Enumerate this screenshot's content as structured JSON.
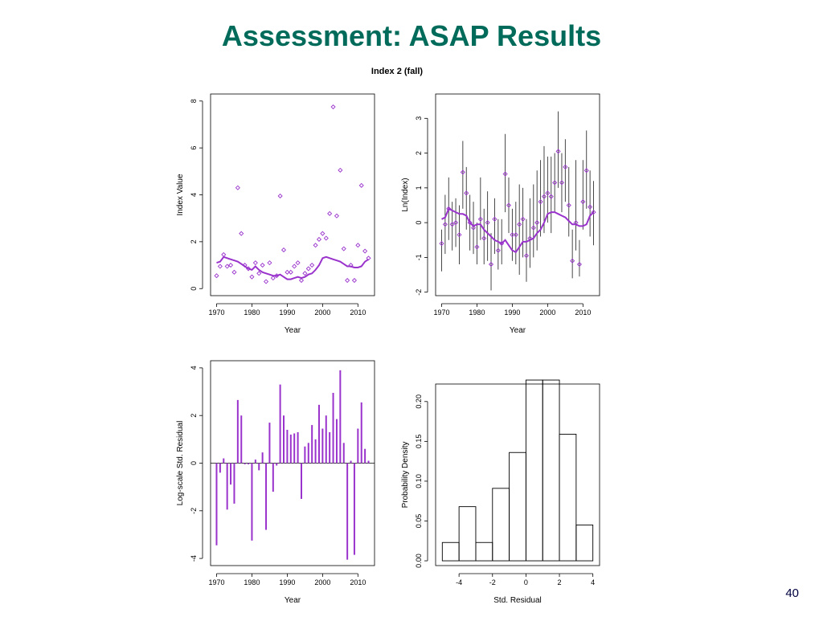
{
  "slide": {
    "title": "Assessment: ASAP Results",
    "page_number": "40",
    "title_color": "#006b5a"
  },
  "figure": {
    "main_title": "Index 2 (fall)",
    "series_color": "#9933cc"
  },
  "chart_data": [
    {
      "type": "scatter",
      "xlabel": "Year",
      "ylabel": "Index Value",
      "xlim": [
        1968.3,
        2014.7
      ],
      "ylim": [
        -0.3,
        8.3
      ],
      "xticks": [
        1970,
        1980,
        1990,
        2000,
        2010
      ],
      "yticks": [
        0,
        2,
        4,
        6,
        8
      ],
      "observed": {
        "x": [
          1970,
          1971,
          1972,
          1973,
          1974,
          1975,
          1976,
          1977,
          1978,
          1979,
          1980,
          1981,
          1982,
          1983,
          1984,
          1985,
          1986,
          1987,
          1988,
          1989,
          1990,
          1991,
          1992,
          1993,
          1994,
          1995,
          1996,
          1997,
          1998,
          1999,
          2000,
          2001,
          2002,
          2003,
          2004,
          2005,
          2006,
          2007,
          2008,
          2009,
          2010,
          2011,
          2012,
          2013
        ],
        "y": [
          0.55,
          0.95,
          1.45,
          0.95,
          1.0,
          0.7,
          4.3,
          2.35,
          1.0,
          0.85,
          0.5,
          1.1,
          0.65,
          1.0,
          0.3,
          1.1,
          0.45,
          0.55,
          3.95,
          1.65,
          0.7,
          0.7,
          0.95,
          1.1,
          0.35,
          0.65,
          0.85,
          1.0,
          1.85,
          2.1,
          2.35,
          2.15,
          3.2,
          7.75,
          3.1,
          5.05,
          1.7,
          0.35,
          1.0,
          0.35,
          1.85,
          4.4,
          1.6,
          1.3
        ]
      },
      "predicted": {
        "x": [
          1970,
          1971,
          1972,
          1973,
          1974,
          1975,
          1976,
          1977,
          1978,
          1979,
          1980,
          1981,
          1982,
          1983,
          1984,
          1985,
          1986,
          1987,
          1988,
          1989,
          1990,
          1991,
          1992,
          1993,
          1994,
          1995,
          1996,
          1997,
          1998,
          1999,
          2000,
          2001,
          2002,
          2003,
          2004,
          2005,
          2006,
          2007,
          2008,
          2009,
          2010,
          2011,
          2012,
          2013
        ],
        "y": [
          1.1,
          1.15,
          1.35,
          1.3,
          1.25,
          1.2,
          1.15,
          1.05,
          0.95,
          0.85,
          0.8,
          0.95,
          0.8,
          0.7,
          0.65,
          0.6,
          0.55,
          0.55,
          0.6,
          0.5,
          0.4,
          0.4,
          0.45,
          0.5,
          0.45,
          0.5,
          0.6,
          0.65,
          0.8,
          1.0,
          1.3,
          1.35,
          1.3,
          1.25,
          1.2,
          1.15,
          1.05,
          0.95,
          0.95,
          0.9,
          0.9,
          0.95,
          1.15,
          1.25
        ]
      }
    },
    {
      "type": "scatter",
      "xlabel": "Year",
      "ylabel": "Ln(Index)",
      "xlim": [
        1968.3,
        2014.7
      ],
      "ylim": [
        -2.1,
        3.7
      ],
      "xticks": [
        1970,
        1980,
        1990,
        2000,
        2010
      ],
      "yticks": [
        -2,
        -1,
        0,
        1,
        2,
        3
      ],
      "observed": {
        "x": [
          1970,
          1971,
          1972,
          1973,
          1974,
          1975,
          1976,
          1977,
          1978,
          1979,
          1980,
          1981,
          1982,
          1983,
          1984,
          1985,
          1986,
          1987,
          1988,
          1989,
          1990,
          1991,
          1992,
          1993,
          1994,
          1995,
          1996,
          1997,
          1998,
          1999,
          2000,
          2001,
          2002,
          2003,
          2004,
          2005,
          2006,
          2007,
          2008,
          2009,
          2010,
          2011,
          2012,
          2013
        ],
        "y": [
          -0.6,
          -0.05,
          0.4,
          -0.05,
          0.0,
          -0.35,
          1.45,
          0.85,
          0.0,
          -0.15,
          -0.7,
          0.1,
          -0.45,
          0.0,
          -1.2,
          0.1,
          -0.8,
          -0.6,
          1.4,
          0.5,
          -0.35,
          -0.35,
          -0.05,
          0.1,
          -0.95,
          -0.45,
          -0.15,
          0.0,
          0.6,
          0.75,
          0.85,
          0.75,
          1.15,
          2.05,
          1.15,
          1.6,
          0.5,
          -1.1,
          0.0,
          -1.2,
          0.6,
          1.5,
          0.45,
          0.3
        ]
      },
      "error_bars": {
        "lower": [
          -1.4,
          -0.9,
          -0.5,
          -0.8,
          -0.7,
          -1.2,
          0.4,
          -0.2,
          -0.8,
          -0.9,
          -1.2,
          -0.5,
          -1.2,
          -1.1,
          -1.95,
          -0.9,
          -1.35,
          -1.2,
          0.3,
          -0.3,
          -1.1,
          -1.2,
          -1.5,
          -1.0,
          -1.7,
          -1.3,
          -1.0,
          -0.8,
          -0.4,
          -0.3,
          0.0,
          -0.3,
          0.3,
          1.0,
          0.3,
          0.6,
          -0.4,
          -1.6,
          -0.8,
          -1.55,
          -0.2,
          0.4,
          -0.4,
          -0.65
        ],
        "upper": [
          -0.2,
          0.8,
          1.3,
          0.6,
          0.7,
          0.5,
          2.35,
          1.6,
          0.8,
          0.6,
          0.0,
          1.3,
          0.4,
          0.9,
          -0.3,
          0.7,
          0.1,
          0.1,
          2.55,
          1.3,
          0.4,
          0.6,
          1.1,
          1.0,
          0.1,
          0.7,
          1.1,
          1.5,
          1.8,
          2.2,
          1.9,
          1.9,
          2.0,
          3.2,
          2.0,
          2.4,
          1.6,
          -0.2,
          1.8,
          -0.5,
          1.8,
          2.65,
          1.5,
          1.2
        ]
      },
      "predicted": {
        "x": [
          1970,
          1971,
          1972,
          1973,
          1974,
          1975,
          1976,
          1977,
          1978,
          1979,
          1980,
          1981,
          1982,
          1983,
          1984,
          1985,
          1986,
          1987,
          1988,
          1989,
          1990,
          1991,
          1992,
          1993,
          1994,
          1995,
          1996,
          1997,
          1998,
          1999,
          2000,
          2001,
          2002,
          2003,
          2004,
          2005,
          2006,
          2007,
          2008,
          2009,
          2010,
          2011,
          2012,
          2013
        ],
        "y": [
          0.1,
          0.15,
          0.4,
          0.35,
          0.3,
          0.25,
          0.25,
          0.2,
          0.0,
          -0.1,
          -0.05,
          -0.05,
          -0.2,
          -0.3,
          -0.4,
          -0.5,
          -0.55,
          -0.6,
          -0.5,
          -0.65,
          -0.8,
          -0.85,
          -0.7,
          -0.55,
          -0.55,
          -0.5,
          -0.45,
          -0.3,
          -0.2,
          0.0,
          0.25,
          0.3,
          0.3,
          0.25,
          0.2,
          0.15,
          0.05,
          -0.05,
          -0.05,
          -0.1,
          -0.1,
          -0.05,
          0.2,
          0.3
        ]
      }
    },
    {
      "type": "bar",
      "xlabel": "Year",
      "ylabel": "Log-scale Std. Residual",
      "xlim": [
        1968.3,
        2014.7
      ],
      "ylim": [
        -4.3,
        4.3
      ],
      "xticks": [
        1970,
        1980,
        1990,
        2000,
        2010
      ],
      "yticks": [
        -4,
        -2,
        0,
        2,
        4
      ],
      "x": [
        1970,
        1971,
        1972,
        1973,
        1974,
        1975,
        1976,
        1977,
        1978,
        1979,
        1980,
        1981,
        1982,
        1983,
        1984,
        1985,
        1986,
        1987,
        1988,
        1989,
        1990,
        1991,
        1992,
        1993,
        1994,
        1995,
        1996,
        1997,
        1998,
        1999,
        2000,
        2001,
        2002,
        2003,
        2004,
        2005,
        2006,
        2007,
        2008,
        2009,
        2010,
        2011,
        2012,
        2013
      ],
      "values": [
        -3.45,
        -0.4,
        0.2,
        -1.95,
        -0.9,
        -1.7,
        2.65,
        2.0,
        -0.05,
        -0.05,
        -3.25,
        0.15,
        -0.3,
        0.45,
        -2.8,
        1.7,
        -1.2,
        -0.1,
        3.3,
        2.0,
        1.4,
        1.2,
        1.25,
        1.3,
        -1.5,
        0.7,
        0.85,
        1.6,
        1.0,
        2.45,
        1.45,
        2.0,
        1.3,
        2.95,
        1.85,
        3.9,
        0.85,
        -4.05,
        0.1,
        -3.85,
        1.45,
        2.55,
        0.6,
        0.1
      ]
    },
    {
      "type": "bar",
      "subtype": "histogram",
      "xlabel": "Std. Residual",
      "ylabel": "Probability Density",
      "xlim": [
        -5.4,
        4.4
      ],
      "ylim": [
        -0.006,
        0.222
      ],
      "xticks": [
        -4,
        -2,
        0,
        2,
        4
      ],
      "yticks": [
        0.0,
        0.05,
        0.1,
        0.15,
        0.2
      ],
      "ytick_labels": [
        "0.00",
        "0.05",
        "0.10",
        "0.15",
        "0.20"
      ],
      "bin_edges": [
        -5,
        -4,
        -3,
        -2,
        -1,
        0,
        1,
        2,
        3,
        4
      ],
      "values": [
        0.023,
        0.068,
        0.023,
        0.091,
        0.136,
        0.227,
        0.227,
        0.159,
        0.045
      ]
    }
  ]
}
